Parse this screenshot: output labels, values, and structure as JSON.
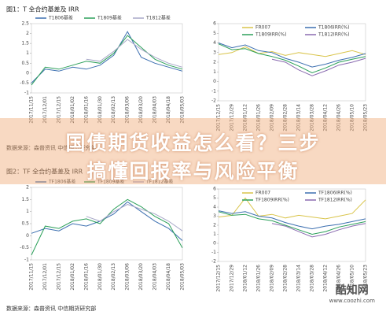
{
  "document": {
    "fig1_caption": "图1：T 全合约基差及 IRR",
    "fig1_source": "数据来源：森普资讯 中信期货研究部",
    "fig2_caption": "图2：TF 全合约基差及 IRR",
    "fig2_source": "数据来源：森普资讯 中信期货研究部",
    "banner_line1": "国债期货收益怎么看？三步",
    "banner_line2": "搞懂回报率与风险平衡",
    "watermark": "酷知网",
    "watermark_url": "www.coozhi.com"
  },
  "chart_data": [
    {
      "type": "line",
      "legend": "top",
      "categories": [
        "2017/11/15",
        "2017/12/01",
        "2017/12/15",
        "2018/01/02",
        "2018/01/16",
        "2018/01/30",
        "2018/02/13",
        "2018/03/06",
        "2018/03/20",
        "2018/04/03",
        "2018/04/18",
        "2018/05/03"
      ],
      "ylim": [
        -1,
        2.5
      ],
      "yticks": [
        -1,
        -0.5,
        0,
        0.5,
        1,
        1.5,
        2,
        2.5
      ],
      "series": [
        {
          "name": "T1806基差",
          "color": "#3c6fb0",
          "values": [
            -0.5,
            0.2,
            0.1,
            0.3,
            0.2,
            0.4,
            0.9,
            2.1,
            0.8,
            0.5,
            0.3,
            0.1
          ]
        },
        {
          "name": "T1809基差",
          "color": "#2ca05a",
          "values": [
            -0.6,
            0.3,
            0.2,
            0.4,
            0.6,
            0.5,
            1.0,
            1.9,
            1.3,
            0.7,
            0.4,
            0.2
          ]
        },
        {
          "name": "T1812基差",
          "color": "#a8a8c8",
          "values": [
            null,
            null,
            null,
            null,
            0.7,
            0.6,
            1.1,
            1.7,
            1.2,
            0.8,
            0.5,
            0.3
          ]
        }
      ]
    },
    {
      "type": "line",
      "legend": "inside",
      "categories": [
        "2017/12/15",
        "2017/12/29",
        "2018/01/12",
        "2018/01/26",
        "2018/02/09",
        "2018/02/28",
        "2018/03/14",
        "2018/03/28",
        "2018/04/12",
        "2018/04/26",
        "2018/05/10",
        "2018/05/23"
      ],
      "ylim": [
        -2,
        6
      ],
      "yticks": [
        -2,
        -1,
        0,
        1,
        2,
        3,
        4,
        5,
        6
      ],
      "series": [
        {
          "name": "FR007",
          "color": "#d9c44a",
          "values": [
            2.8,
            3.0,
            3.6,
            2.9,
            3.1,
            2.7,
            3.0,
            2.8,
            2.6,
            2.9,
            3.2,
            2.8
          ]
        },
        {
          "name": "T1806IRR(%)",
          "color": "#3c6fb0",
          "values": [
            4.0,
            3.5,
            3.8,
            3.2,
            3.0,
            2.4,
            2.0,
            1.5,
            1.8,
            2.2,
            2.5,
            2.9
          ]
        },
        {
          "name": "T1809IRR(%)",
          "color": "#2ca05a",
          "values": [
            3.9,
            3.3,
            3.4,
            2.9,
            2.6,
            2.2,
            1.6,
            0.9,
            1.4,
            2.0,
            2.3,
            2.6
          ]
        },
        {
          "name": "T1812IRR(%)",
          "color": "#8a6bb0",
          "values": [
            null,
            null,
            null,
            null,
            2.3,
            2.0,
            1.2,
            0.6,
            1.1,
            1.7,
            2.0,
            2.4
          ]
        }
      ]
    },
    {
      "type": "line",
      "legend": "top",
      "categories": [
        "2017/11/15",
        "2017/12/01",
        "2017/12/15",
        "2018/01/02",
        "2018/01/16",
        "2018/01/30",
        "2018/02/13",
        "2018/03/06",
        "2018/03/20",
        "2018/04/03",
        "2018/04/18",
        "2018/05/03"
      ],
      "ylim": [
        -1,
        2
      ],
      "yticks": [
        -1,
        -0.5,
        0,
        0.5,
        1,
        1.5,
        2
      ],
      "series": [
        {
          "name": "TF1806基差",
          "color": "#3c6fb0",
          "values": [
            0.1,
            0.3,
            0.2,
            0.5,
            0.4,
            0.6,
            0.9,
            1.4,
            1.0,
            0.6,
            0.3,
            -0.2
          ]
        },
        {
          "name": "TF1809基差",
          "color": "#2ca05a",
          "values": [
            -0.8,
            0.4,
            0.3,
            0.6,
            0.7,
            0.5,
            1.1,
            1.5,
            1.2,
            0.8,
            0.5,
            -0.5
          ]
        },
        {
          "name": "TF1812基差",
          "color": "#a8a8c8",
          "values": [
            null,
            null,
            null,
            null,
            0.8,
            0.6,
            1.0,
            1.3,
            1.1,
            0.9,
            0.6,
            0.2
          ]
        }
      ]
    },
    {
      "type": "line",
      "legend": "inside",
      "categories": [
        "2017/12/15",
        "2017/12/29",
        "2018/01/12",
        "2018/01/26",
        "2018/02/09",
        "2018/02/28",
        "2018/03/14",
        "2018/03/28",
        "2018/04/12",
        "2018/04/26",
        "2018/05/10",
        "2018/05/23"
      ],
      "ylim": [
        -2,
        6
      ],
      "yticks": [
        -2,
        -1,
        0,
        1,
        2,
        3,
        4,
        5,
        6
      ],
      "series": [
        {
          "name": "FR007",
          "color": "#d9c44a",
          "values": [
            2.9,
            3.1,
            5.0,
            3.0,
            3.2,
            2.8,
            3.1,
            2.9,
            2.7,
            3.0,
            3.3,
            4.8
          ]
        },
        {
          "name": "TF1806IRR(%)",
          "color": "#3c6fb0",
          "values": [
            3.6,
            3.3,
            3.5,
            3.0,
            2.8,
            2.3,
            1.9,
            1.6,
            1.9,
            2.1,
            2.4,
            2.7
          ]
        },
        {
          "name": "TF1809IRR(%)",
          "color": "#2ca05a",
          "values": [
            3.5,
            3.1,
            3.2,
            2.7,
            2.5,
            2.0,
            1.5,
            1.0,
            1.3,
            1.8,
            2.1,
            2.4
          ]
        },
        {
          "name": "TF1812IRR(%)",
          "color": "#8a6bb0",
          "values": [
            null,
            null,
            null,
            null,
            2.2,
            1.9,
            1.3,
            0.7,
            1.0,
            1.5,
            1.9,
            2.2
          ]
        }
      ]
    }
  ]
}
